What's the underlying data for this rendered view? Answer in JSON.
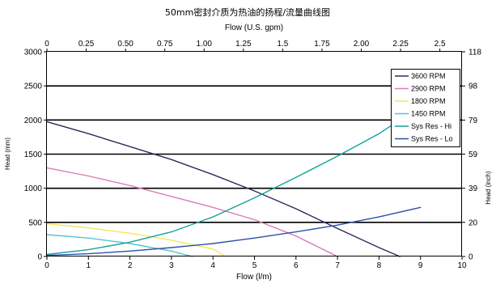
{
  "chart_data": {
    "type": "line",
    "title": "50mm密封介质为热油的扬程/流量曲线图",
    "xlabel": "Flow (l/m)",
    "x2label": "Flow (U.S. gpm)",
    "ylabel": "Head (mm)",
    "y2label": "Head (inch)",
    "xlim": [
      0,
      10
    ],
    "ylim": [
      0,
      3000
    ],
    "x2lim": [
      0,
      2.641
    ],
    "y2lim": [
      0,
      118.11
    ],
    "xticks": [
      "0",
      "1",
      "2",
      "3",
      "4",
      "5",
      "6",
      "7",
      "8",
      "9",
      "10"
    ],
    "yticks": [
      "0",
      "500",
      "1000",
      "1500",
      "2000",
      "2500",
      "3000"
    ],
    "x2ticks": [
      {
        "value": 0,
        "label": "0"
      },
      {
        "value": 0.25,
        "label": "0.25"
      },
      {
        "value": 0.5,
        "label": "0.50"
      },
      {
        "value": 0.75,
        "label": "0.75"
      },
      {
        "value": 1.0,
        "label": "1.00"
      },
      {
        "value": 1.25,
        "label": "1.25"
      },
      {
        "value": 1.5,
        "label": "1.5"
      },
      {
        "value": 1.75,
        "label": "1.75"
      },
      {
        "value": 2.0,
        "label": "2.00"
      },
      {
        "value": 2.25,
        "label": "2.25"
      },
      {
        "value": 2.5,
        "label": "2.5"
      }
    ],
    "y2ticks": [
      {
        "value": 0,
        "label": "0"
      },
      {
        "value": 19.7,
        "label": "20"
      },
      {
        "value": 39.4,
        "label": "39"
      },
      {
        "value": 59.1,
        "label": "59"
      },
      {
        "value": 78.7,
        "label": "79"
      },
      {
        "value": 98.4,
        "label": "98"
      },
      {
        "value": 118.1,
        "label": "118"
      }
    ],
    "grid": "horizontal",
    "legend_position": "top-right",
    "series": [
      {
        "name": "3600 RPM",
        "color": "#2b2c5c",
        "x": [
          0,
          1,
          2,
          3,
          4,
          5,
          6,
          7,
          8,
          8.5
        ],
        "y": [
          1975,
          1800,
          1610,
          1420,
          1200,
          960,
          700,
          410,
          130,
          0
        ]
      },
      {
        "name": "2900 RPM",
        "color": "#d97cb7",
        "x": [
          0,
          1,
          2,
          3,
          4,
          5,
          6,
          7
        ],
        "y": [
          1300,
          1180,
          1040,
          880,
          720,
          540,
          300,
          0
        ]
      },
      {
        "name": "1800 RPM",
        "color": "#f2e75a",
        "x": [
          0,
          1,
          2,
          3,
          4,
          4.3
        ],
        "y": [
          480,
          420,
          340,
          240,
          110,
          0
        ]
      },
      {
        "name": "1450 RPM",
        "color": "#55c4cc",
        "x": [
          0,
          1,
          2,
          3,
          3.5
        ],
        "y": [
          320,
          270,
          190,
          80,
          0
        ]
      },
      {
        "name": "Sys Res - Hi",
        "color": "#15a19a",
        "x": [
          0,
          1,
          2,
          3,
          4,
          5,
          6,
          7,
          8,
          9,
          9.5
        ],
        "y": [
          30,
          100,
          210,
          360,
          580,
          860,
          1160,
          1470,
          1800,
          2200,
          2400
        ]
      },
      {
        "name": "Sys Res - Lo",
        "color": "#2c52a8",
        "x": [
          0,
          1,
          2,
          3,
          4,
          5,
          6,
          7,
          8,
          9
        ],
        "y": [
          15,
          40,
          80,
          130,
          190,
          270,
          360,
          460,
          580,
          720
        ]
      }
    ]
  }
}
